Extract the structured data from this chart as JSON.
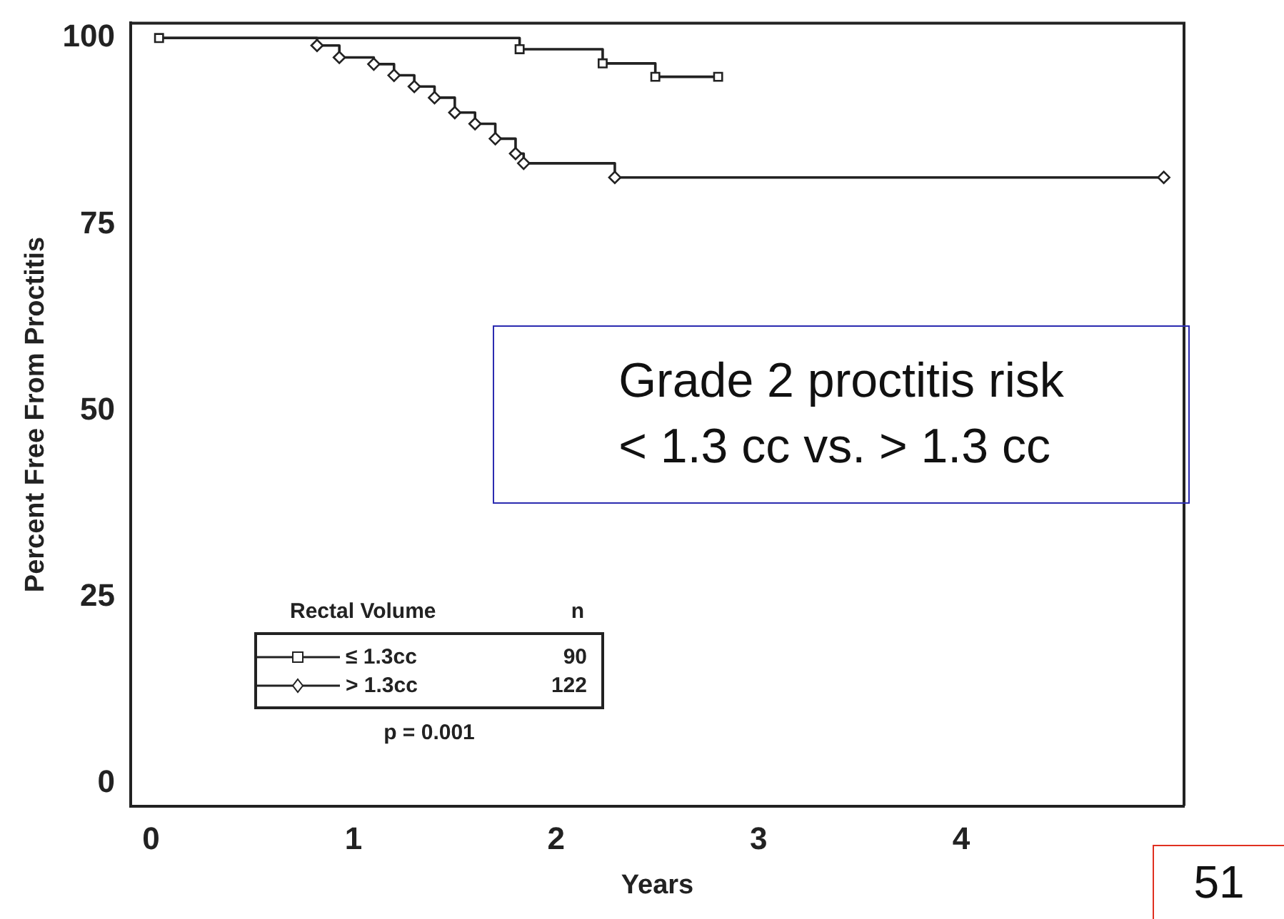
{
  "chart_data": {
    "type": "step",
    "xlabel": "Years",
    "ylabel": "Percent Free From Proctitis",
    "legend_title": "Rectal Volume",
    "legend": "bottom left",
    "grid": false,
    "xlim": [
      -0.1,
      5.1
    ],
    "xticks": [
      0,
      1,
      2,
      3,
      4
    ],
    "ylim": [
      -3,
      102
    ],
    "yticks": [
      0,
      25,
      50,
      75,
      100
    ],
    "series": [
      {
        "name": "≤ 1.3cc",
        "color": "#222222",
        "marker": "square",
        "x": [
          0.04,
          1.82,
          2.23,
          2.49,
          2.8
        ],
        "values": [
          100,
          98.5,
          96.6,
          94.8,
          94.8
        ]
      },
      {
        "name": "> 1.3cc",
        "color": "#222222",
        "marker": "diamond",
        "x": [
          0.04,
          0.82,
          0.93,
          1.1,
          1.2,
          1.3,
          1.4,
          1.5,
          1.6,
          1.7,
          1.8,
          1.84,
          2.29,
          5.0
        ],
        "values": [
          100,
          99,
          97.4,
          96.5,
          95,
          93.5,
          92,
          90,
          88.5,
          86.5,
          84.5,
          83.2,
          81.3,
          81.3
        ]
      }
    ],
    "annotations": [
      "n",
      "90",
      "122",
      "p = 0.001",
      "Grade 2 proctitis risk\n< 1.3 cc vs. > 1.3 cc",
      "51"
    ]
  }
}
